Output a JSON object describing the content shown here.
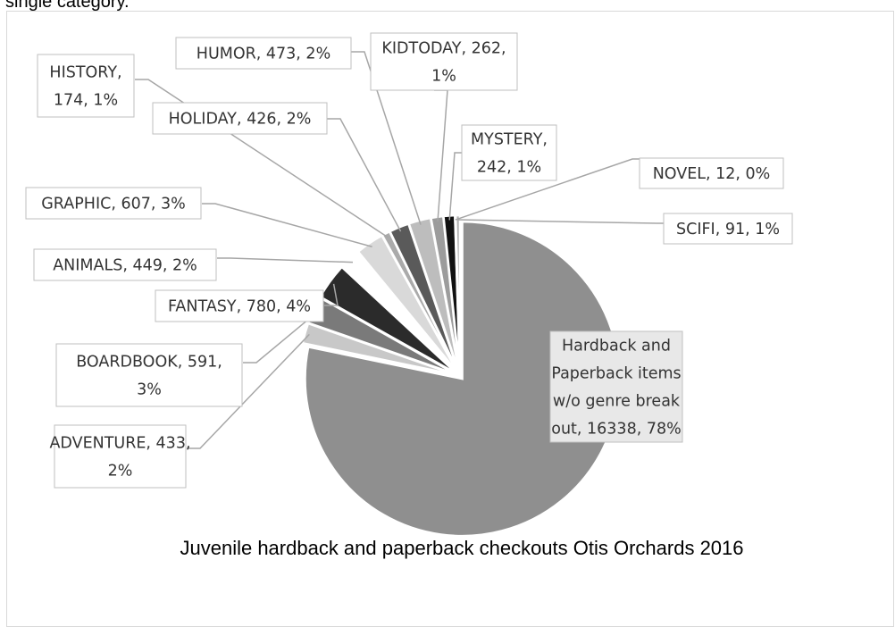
{
  "page": {
    "top_text": "single category."
  },
  "chart_data": {
    "type": "pie",
    "title": "Juvenile hardback and paperback checkouts Otis Orchards 2016",
    "slices": [
      {
        "name": "Hardback and Paperback items w/o genre break out",
        "value": 16338,
        "percent": "78%",
        "color": "#8f8f8f",
        "label_lines": [
          "Hardback and",
          "Paperback items",
          "w/o genre break",
          "out, 16338, 78%"
        ]
      },
      {
        "name": "ADVENTURE",
        "value": 433,
        "percent": "2%",
        "color": "#c8c8c8",
        "label_lines": [
          "ADVENTURE, 433,",
          "2%"
        ]
      },
      {
        "name": "BOARDBOOK",
        "value": 591,
        "percent": "3%",
        "color": "#7a7a7a",
        "label_lines": [
          "BOARDBOOK, 591,",
          "3%"
        ]
      },
      {
        "name": "FANTASY",
        "value": 780,
        "percent": "4%",
        "color": "#2b2b2b",
        "label_lines": [
          "FANTASY, 780, 4%"
        ]
      },
      {
        "name": "ANIMALS",
        "value": 449,
        "percent": "2%",
        "color": "#ffffff",
        "label_lines": [
          "ANIMALS, 449, 2%"
        ]
      },
      {
        "name": "GRAPHIC",
        "value": 607,
        "percent": "3%",
        "color": "#d9d9d9",
        "label_lines": [
          "GRAPHIC, 607, 3%"
        ]
      },
      {
        "name": "HISTORY",
        "value": 174,
        "percent": "1%",
        "color": "#aaaaaa",
        "label_lines": [
          "HISTORY,",
          "174, 1%"
        ]
      },
      {
        "name": "HOLIDAY",
        "value": 426,
        "percent": "2%",
        "color": "#5a5a5a",
        "label_lines": [
          "HOLIDAY, 426, 2%"
        ]
      },
      {
        "name": "HUMOR",
        "value": 473,
        "percent": "2%",
        "color": "#bdbdbd",
        "label_lines": [
          "HUMOR, 473, 2%"
        ]
      },
      {
        "name": "KIDTODAY",
        "value": 262,
        "percent": "1%",
        "color": "#9c9c9c",
        "label_lines": [
          "KIDTODAY, 262,",
          "1%"
        ]
      },
      {
        "name": "MYSTERY",
        "value": 242,
        "percent": "1%",
        "color": "#111111",
        "label_lines": [
          "MYSTERY,",
          "242, 1%"
        ]
      },
      {
        "name": "NOVEL",
        "value": 12,
        "percent": "0%",
        "color": "#e3e3e3",
        "label_lines": [
          "NOVEL, 12, 0%"
        ]
      },
      {
        "name": "SCIFI",
        "value": 91,
        "percent": "1%",
        "color": "#b0b0b0",
        "label_lines": [
          "SCIFI, 91, 1%"
        ]
      }
    ]
  }
}
